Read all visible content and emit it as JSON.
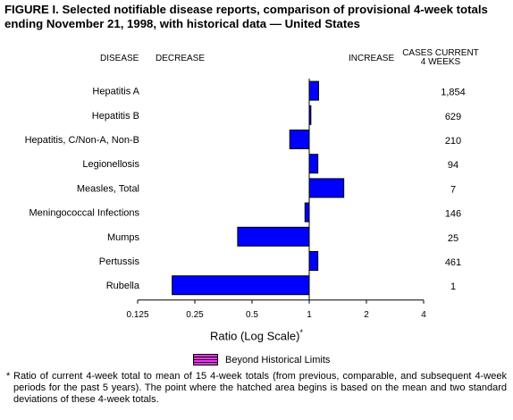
{
  "title": "FIGURE I. Selected notifiable disease reports, comparison of provisional 4-week totals ending November 21, 1998, with historical data — United States",
  "headers": {
    "disease": "DISEASE",
    "decrease": "DECREASE",
    "increase": "INCREASE",
    "cases_line1": "CASES CURRENT",
    "cases_line2": "4 WEEKS"
  },
  "legend_label": "Beyond Historical Limits",
  "footnote_mark": "*",
  "footnote": "Ratio of current 4-week total to mean of 15 4-week totals (from previous, comparable, and subsequent 4-week periods for the past 5 years). The point where the hatched area begins is based on the mean and two standard deviations of these 4-week totals.",
  "colors": {
    "bar": "#0000ff",
    "beyond_limits": "#ff33ff"
  },
  "chart_data": {
    "type": "bar",
    "orientation": "horizontal",
    "xscale": "log2",
    "xlabel": "Ratio (Log Scale)",
    "xlabel_mark": "*",
    "xlim": [
      0.125,
      4
    ],
    "xticks": [
      "0.125",
      "0.25",
      "0.5",
      "1",
      "2",
      "4"
    ],
    "baseline": 1,
    "categories": [
      "Hepatitis A",
      "Hepatitis B",
      "Hepatitis, C/Non-A, Non-B",
      "Legionellosis",
      "Measles, Total",
      "Meningococcal Infections",
      "Mumps",
      "Pertussis",
      "Rubella"
    ],
    "values": [
      1.12,
      1.02,
      0.79,
      1.11,
      1.52,
      0.95,
      0.42,
      1.11,
      0.19
    ],
    "cases_current_4_weeks": [
      "1,854",
      "629",
      "210",
      "94",
      "7",
      "146",
      "25",
      "461",
      "1"
    ]
  }
}
